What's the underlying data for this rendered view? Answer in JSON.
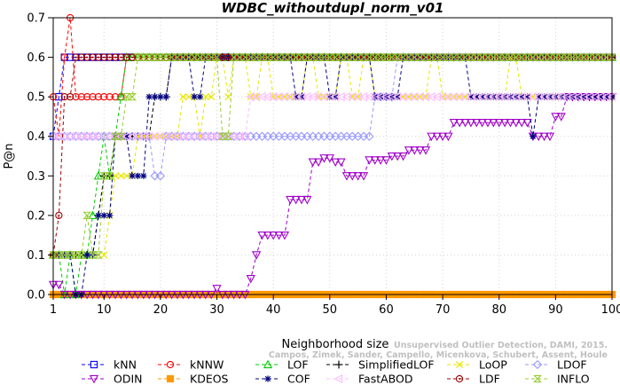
{
  "chart_data": {
    "type": "line",
    "title": "WDBC_withoutdupl_norm_v01",
    "xlabel": "Neighborhood size",
    "ylabel": "P@n",
    "xlim": [
      1,
      100
    ],
    "ylim": [
      0,
      0.7
    ],
    "xticks": [
      1,
      10,
      20,
      30,
      40,
      50,
      60,
      70,
      80,
      90,
      100
    ],
    "yticks": [
      0.0,
      0.1,
      0.2,
      0.3,
      0.4,
      0.5,
      0.6,
      0.7
    ],
    "grid": true,
    "legend_position": "bottom",
    "credit": {
      "line1": "Unsupervised Outlier Detection, DAMI, 2015.",
      "line2": "Campos, Zimek, Sander, Campello, Micenkova, Schubert, Assent, Houle"
    },
    "series": [
      {
        "name": "kNN",
        "color": "#0000ff",
        "marker": "square",
        "points": [
          [
            1,
            0.4
          ],
          [
            2,
            0.5
          ],
          [
            3,
            0.6
          ],
          [
            100,
            0.6
          ]
        ]
      },
      {
        "name": "kNNW",
        "color": "#ff0000",
        "marker": "circle",
        "points": [
          [
            1,
            0.5
          ],
          [
            2,
            0.4
          ],
          [
            3,
            0.6
          ],
          [
            4,
            0.7
          ],
          [
            5,
            0.5
          ],
          [
            13,
            0.5
          ],
          [
            14,
            0.6
          ],
          [
            100,
            0.6
          ]
        ]
      },
      {
        "name": "LOF",
        "color": "#00cc00",
        "marker": "triangle-up",
        "points": [
          [
            1,
            0.1
          ],
          [
            2,
            0.1
          ],
          [
            3,
            0.0
          ],
          [
            4,
            0.1
          ],
          [
            5,
            0.0
          ],
          [
            6,
            0.1
          ],
          [
            7,
            0.1
          ],
          [
            8,
            0.2
          ],
          [
            9,
            0.3
          ],
          [
            10,
            0.4
          ],
          [
            11,
            0.3
          ],
          [
            12,
            0.4
          ],
          [
            13,
            0.5
          ],
          [
            14,
            0.6
          ],
          [
            100,
            0.6
          ]
        ]
      },
      {
        "name": "SimplifiedLOF",
        "color": "#000000",
        "marker": "plus",
        "points": [
          [
            1,
            0.1
          ],
          [
            3,
            0.1
          ],
          [
            5,
            0.1
          ],
          [
            7,
            0.1
          ],
          [
            9,
            0.2
          ],
          [
            10,
            0.3
          ],
          [
            12,
            0.4
          ],
          [
            15,
            0.4
          ],
          [
            17,
            0.4
          ],
          [
            18,
            0.4
          ],
          [
            19,
            0.5
          ],
          [
            20,
            0.5
          ],
          [
            21,
            0.5
          ],
          [
            22,
            0.6
          ],
          [
            100,
            0.6
          ]
        ]
      },
      {
        "name": "LoOP",
        "color": "#e6e600",
        "marker": "x",
        "points": [
          [
            1,
            0.1
          ],
          [
            9,
            0.1
          ],
          [
            10,
            0.1
          ],
          [
            11,
            0.2
          ],
          [
            12,
            0.3
          ],
          [
            14,
            0.3
          ],
          [
            16,
            0.4
          ],
          [
            22,
            0.4
          ],
          [
            24,
            0.5
          ],
          [
            26,
            0.5
          ],
          [
            27,
            0.4
          ],
          [
            28,
            0.5
          ],
          [
            30,
            0.6
          ],
          [
            32,
            0.5
          ],
          [
            33,
            0.6
          ],
          [
            36,
            0.5
          ],
          [
            38,
            0.6
          ],
          [
            40,
            0.5
          ],
          [
            42,
            0.5
          ],
          [
            44,
            0.5
          ],
          [
            46,
            0.6
          ],
          [
            48,
            0.5
          ],
          [
            52,
            0.6
          ],
          [
            54,
            0.5
          ],
          [
            56,
            0.6
          ],
          [
            58,
            0.5
          ],
          [
            66,
            0.5
          ],
          [
            68,
            0.6
          ],
          [
            70,
            0.5
          ],
          [
            80,
            0.5
          ],
          [
            82,
            0.6
          ],
          [
            84,
            0.5
          ],
          [
            100,
            0.5
          ]
        ]
      },
      {
        "name": "LDOF",
        "color": "#9999ff",
        "marker": "diamond",
        "points": [
          [
            1,
            0.4
          ],
          [
            18,
            0.4
          ],
          [
            19,
            0.3
          ],
          [
            20,
            0.3
          ],
          [
            21,
            0.4
          ],
          [
            45,
            0.4
          ],
          [
            46,
            0.4
          ],
          [
            54,
            0.4
          ],
          [
            56,
            0.4
          ],
          [
            57,
            0.4
          ],
          [
            58,
            0.5
          ],
          [
            60,
            0.5
          ],
          [
            62,
            0.6
          ],
          [
            100,
            0.6
          ]
        ]
      },
      {
        "name": "ODIN",
        "color": "#a000c8",
        "marker": "triangle-down",
        "points": [
          [
            1,
            0.025
          ],
          [
            2,
            0.025
          ],
          [
            3,
            0.0
          ],
          [
            29,
            0.0
          ],
          [
            30,
            0.015
          ],
          [
            31,
            0.0
          ],
          [
            35,
            0.0
          ],
          [
            36,
            0.04
          ],
          [
            37,
            0.1
          ],
          [
            38,
            0.15
          ],
          [
            42,
            0.15
          ],
          [
            43,
            0.24
          ],
          [
            45,
            0.24
          ],
          [
            47,
            0.335
          ],
          [
            48,
            0.335
          ],
          [
            49,
            0.345
          ],
          [
            50,
            0.345
          ],
          [
            51,
            0.335
          ],
          [
            53,
            0.3
          ],
          [
            55,
            0.3
          ],
          [
            57,
            0.34
          ],
          [
            60,
            0.34
          ],
          [
            61,
            0.35
          ],
          [
            63,
            0.35
          ],
          [
            64,
            0.365
          ],
          [
            67,
            0.365
          ],
          [
            68,
            0.4
          ],
          [
            70,
            0.4
          ],
          [
            72,
            0.435
          ],
          [
            84,
            0.435
          ],
          [
            85,
            0.435
          ],
          [
            86,
            0.4
          ],
          [
            89,
            0.4
          ],
          [
            90,
            0.45
          ],
          [
            91,
            0.45
          ],
          [
            92,
            0.5
          ],
          [
            100,
            0.5
          ]
        ]
      },
      {
        "name": "KDEOS",
        "color": "#ff9900",
        "marker": "square-filled",
        "points": [
          [
            1,
            0.0
          ],
          [
            100,
            0.0
          ]
        ]
      },
      {
        "name": "COF",
        "color": "#000080",
        "marker": "star",
        "points": [
          [
            1,
            0.1
          ],
          [
            3,
            0.1
          ],
          [
            5,
            0.0
          ],
          [
            6,
            0.0
          ],
          [
            7,
            0.1
          ],
          [
            9,
            0.2
          ],
          [
            10,
            0.2
          ],
          [
            11,
            0.2
          ],
          [
            12,
            0.4
          ],
          [
            13,
            0.4
          ],
          [
            15,
            0.3
          ],
          [
            16,
            0.3
          ],
          [
            18,
            0.5
          ],
          [
            20,
            0.5
          ],
          [
            22,
            0.6
          ],
          [
            24,
            0.6
          ],
          [
            26,
            0.5
          ],
          [
            28,
            0.6
          ],
          [
            42,
            0.6
          ],
          [
            44,
            0.5
          ],
          [
            46,
            0.6
          ],
          [
            48,
            0.6
          ],
          [
            50,
            0.5
          ],
          [
            52,
            0.6
          ],
          [
            56,
            0.6
          ],
          [
            58,
            0.5
          ],
          [
            62,
            0.5
          ],
          [
            63,
            0.6
          ],
          [
            74,
            0.6
          ],
          [
            75,
            0.5
          ],
          [
            85,
            0.5
          ],
          [
            86,
            0.4
          ],
          [
            87,
            0.5
          ],
          [
            100,
            0.5
          ]
        ]
      },
      {
        "name": "FastABOD",
        "color": "#ffbbff",
        "marker": "triangle-left",
        "points": [
          [
            1,
            0.4
          ],
          [
            34,
            0.4
          ],
          [
            36,
            0.5
          ],
          [
            100,
            0.5
          ]
        ]
      },
      {
        "name": "LDF",
        "color": "#a00000",
        "marker": "circle-dot",
        "points": [
          [
            1,
            0.1
          ],
          [
            2,
            0.2
          ],
          [
            3,
            0.5
          ],
          [
            4,
            0.5
          ],
          [
            5,
            0.6
          ],
          [
            100,
            0.6
          ]
        ]
      },
      {
        "name": "INFLO",
        "color": "#99cc33",
        "marker": "hourglass",
        "points": [
          [
            1,
            0.1
          ],
          [
            5,
            0.1
          ],
          [
            6,
            0.1
          ],
          [
            7,
            0.2
          ],
          [
            8,
            0.1
          ],
          [
            9,
            0.1
          ],
          [
            10,
            0.3
          ],
          [
            11,
            0.3
          ],
          [
            12,
            0.4
          ],
          [
            14,
            0.5
          ],
          [
            16,
            0.6
          ],
          [
            30,
            0.6
          ],
          [
            31,
            0.4
          ],
          [
            32,
            0.4
          ],
          [
            33,
            0.6
          ],
          [
            100,
            0.6
          ]
        ]
      }
    ]
  }
}
